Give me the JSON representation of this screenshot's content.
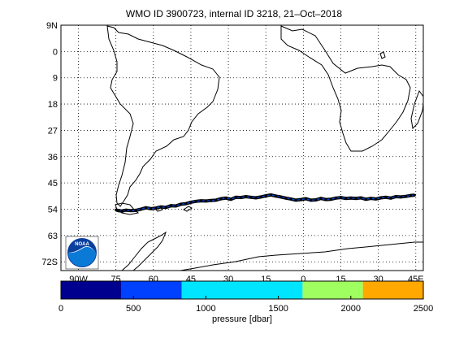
{
  "title": "WMO ID 3900723, internal ID 3218, 21–Oct–2018",
  "map": {
    "lat_ticks": [
      "9N",
      "0",
      "9",
      "18",
      "27",
      "36",
      "45",
      "54",
      "63",
      "72S"
    ],
    "lon_ticks": [
      "90W",
      "75",
      "60",
      "45",
      "30",
      "15",
      "0",
      "15",
      "30",
      "45E"
    ],
    "lon_range_deg": [
      -97,
      48
    ],
    "lat_range_deg": [
      -75,
      9
    ]
  },
  "trajectory": {
    "points": [
      [
        -75,
        -54.2
      ],
      [
        -74,
        -54.5
      ],
      [
        -72.5,
        -54.6
      ],
      [
        -71,
        -54.3
      ],
      [
        -69,
        -54.5
      ],
      [
        -67,
        -54.4
      ],
      [
        -65,
        -54.0
      ],
      [
        -63,
        -53.5
      ],
      [
        -61,
        -53.8
      ],
      [
        -59,
        -53.6
      ],
      [
        -57,
        -53.2
      ],
      [
        -55,
        -53.4
      ],
      [
        -53,
        -52.8
      ],
      [
        -51,
        -52.9
      ],
      [
        -49,
        -52.3
      ],
      [
        -47,
        -52.1
      ],
      [
        -45,
        -51.6
      ],
      [
        -43,
        -51.3
      ],
      [
        -41,
        -51.1
      ],
      [
        -39,
        -51.2
      ],
      [
        -37,
        -51.0
      ],
      [
        -35,
        -50.9
      ],
      [
        -33,
        -50.4
      ],
      [
        -31,
        -50.2
      ],
      [
        -29,
        -50.6
      ],
      [
        -27,
        -49.9
      ],
      [
        -25,
        -50.0
      ],
      [
        -23,
        -49.7
      ],
      [
        -21,
        -49.9
      ],
      [
        -19,
        -50.1
      ],
      [
        -17,
        -49.8
      ],
      [
        -15,
        -49.4
      ],
      [
        -13,
        -49.1
      ],
      [
        -11,
        -49.5
      ],
      [
        -9,
        -49.8
      ],
      [
        -7,
        -50.2
      ],
      [
        -5,
        -50.5
      ],
      [
        -3,
        -50.9
      ],
      [
        -1,
        -50.7
      ],
      [
        1,
        -50.4
      ],
      [
        3,
        -50.9
      ],
      [
        5,
        -50.8
      ],
      [
        7,
        -50.3
      ],
      [
        9,
        -50.7
      ],
      [
        11,
        -50.6
      ],
      [
        13,
        -50.2
      ],
      [
        15,
        -50.0
      ],
      [
        17,
        -50.3
      ],
      [
        19,
        -50.2
      ],
      [
        21,
        -50.3
      ],
      [
        23,
        -50.1
      ],
      [
        25,
        -50.6
      ],
      [
        27,
        -50.3
      ],
      [
        29,
        -50.5
      ],
      [
        31,
        -50.1
      ],
      [
        33,
        -49.9
      ],
      [
        35,
        -50.2
      ],
      [
        37,
        -49.7
      ],
      [
        39,
        -49.8
      ],
      [
        41,
        -49.6
      ],
      [
        43,
        -49.3
      ],
      [
        44.5,
        -49.2
      ]
    ],
    "line_color": "#0044cc",
    "marker_color": "#000000"
  },
  "colorbar": {
    "label": "pressure [dbar]",
    "tick_labels": [
      "0",
      "500",
      "1000",
      "1500",
      "2000",
      "2500"
    ],
    "tick_values": [
      0,
      500,
      1000,
      1500,
      2000,
      2500
    ],
    "bands": [
      {
        "from": 0,
        "to": 417,
        "color": "#00008f"
      },
      {
        "from": 417,
        "to": 833,
        "color": "#0040ff"
      },
      {
        "from": 833,
        "to": 1250,
        "color": "#00e5ff"
      },
      {
        "from": 1250,
        "to": 1667,
        "color": "#00e5ff"
      },
      {
        "from": 1667,
        "to": 2083,
        "color": "#a0ff60"
      },
      {
        "from": 2083,
        "to": 2500,
        "color": "#ffa800"
      }
    ],
    "range": [
      0,
      2500
    ]
  },
  "logo": {
    "text": "NOAA"
  }
}
